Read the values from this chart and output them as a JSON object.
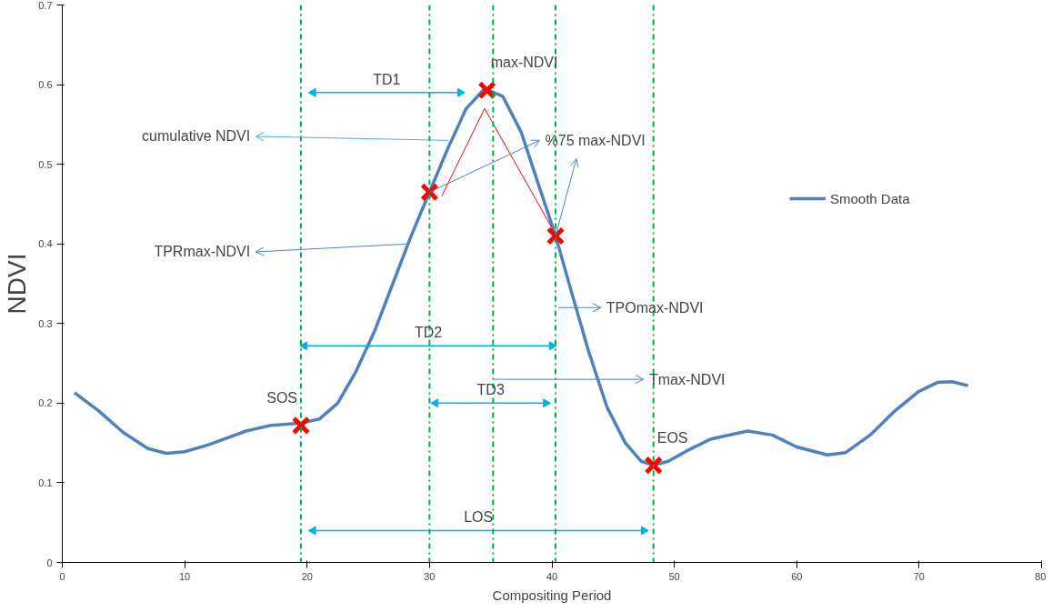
{
  "chart_data": {
    "type": "line",
    "xlabel": "Compositing Period",
    "ylabel": "NDVI",
    "xlim": [
      0,
      80
    ],
    "xticks": [
      0,
      10,
      20,
      30,
      40,
      50,
      60,
      70,
      80
    ],
    "ylim": [
      0,
      0.7
    ],
    "yticks": [
      0,
      0.1,
      0.2,
      0.3,
      0.4,
      0.5,
      0.6,
      0.7
    ],
    "grid": false,
    "legend": "right",
    "series": [
      {
        "name": "Smooth Data",
        "color": "#4f81bd",
        "x": [
          1,
          3,
          5,
          7,
          8.5,
          10,
          12,
          15,
          17,
          19.5,
          21,
          22.5,
          24,
          25.5,
          27,
          28.5,
          30,
          31.5,
          33,
          34.5,
          36,
          37.5,
          39,
          40.3,
          41.5,
          43,
          44.5,
          46,
          47.3,
          48.3,
          49.5,
          51,
          53,
          56,
          58,
          60,
          62.5,
          64,
          66,
          68,
          70,
          71.5,
          72.7,
          74
        ],
        "values": [
          0.213,
          0.19,
          0.163,
          0.143,
          0.137,
          0.139,
          0.148,
          0.165,
          0.172,
          0.175,
          0.18,
          0.2,
          0.24,
          0.29,
          0.35,
          0.41,
          0.465,
          0.52,
          0.57,
          0.595,
          0.585,
          0.54,
          0.47,
          0.41,
          0.345,
          0.265,
          0.195,
          0.15,
          0.127,
          0.122,
          0.127,
          0.14,
          0.155,
          0.165,
          0.16,
          0.145,
          0.135,
          0.138,
          0.16,
          0.19,
          0.215,
          0.226,
          0.227,
          0.222
        ]
      },
      {
        "type": "scatter",
        "marker": "cross",
        "color": "#ff0000",
        "x": [
          19.5,
          30,
          34.7,
          40.3,
          48.3
        ],
        "values": [
          0.172,
          0.465,
          0.593,
          0.41,
          0.122
        ]
      },
      {
        "color": "#ff0000",
        "x": [
          31,
          34.5,
          40
        ],
        "values": [
          0.46,
          0.57,
          0.42
        ]
      },
      {
        "name": "TD1",
        "color": "#00b0f0",
        "marker": "triangle",
        "x": [
          20.5,
          32.5
        ],
        "values": [
          0.59,
          0.59
        ]
      },
      {
        "name": "TD2",
        "color": "#00b0f0",
        "marker": "triangle",
        "x": [
          19.8,
          40
        ],
        "values": [
          0.272,
          0.272
        ]
      },
      {
        "name": "TD3",
        "color": "#00b0f0",
        "marker": "triangle",
        "x": [
          30.5,
          39.5
        ],
        "values": [
          0.2,
          0.2
        ]
      },
      {
        "name": "LOS",
        "color": "#00b0f0",
        "marker": "triangle",
        "x": [
          20.5,
          47.5
        ],
        "values": [
          0.04,
          0.04
        ]
      }
    ],
    "ref_lines": [
      {
        "axis": "x",
        "value": 19.5,
        "color": "#00b050",
        "line_style": "dashdot"
      },
      {
        "axis": "x",
        "value": 30,
        "color": "#00b050",
        "line_style": "dashdot"
      },
      {
        "axis": "x",
        "value": 35.2,
        "color": "#00b050",
        "line_style": "dashdot"
      },
      {
        "axis": "x",
        "value": 40.3,
        "color": "#00b050",
        "line_style": "dashdot"
      },
      {
        "axis": "x",
        "value": 48.3,
        "color": "#00b050",
        "line_style": "dashdot"
      }
    ],
    "annotations": [
      {
        "text": "SOS",
        "x": 19.5,
        "y": 0.172
      },
      {
        "text": "max-NDVI",
        "x": 34.7,
        "y": 0.593
      },
      {
        "text": "EOS",
        "x": 48.3,
        "y": 0.122
      },
      {
        "text": "cumulative NDVI",
        "x": 31.5,
        "y": 0.53
      },
      {
        "text": "%75 max-NDVI",
        "x": 30,
        "y": 0.465
      },
      {
        "text": "TPRmax-NDVI",
        "x": 28.3,
        "y": 0.4
      },
      "TPOmax-NDVI",
      {
        "text": "Tmax-NDVI",
        "x": 35.2,
        "y": 0.23
      }
    ]
  }
}
